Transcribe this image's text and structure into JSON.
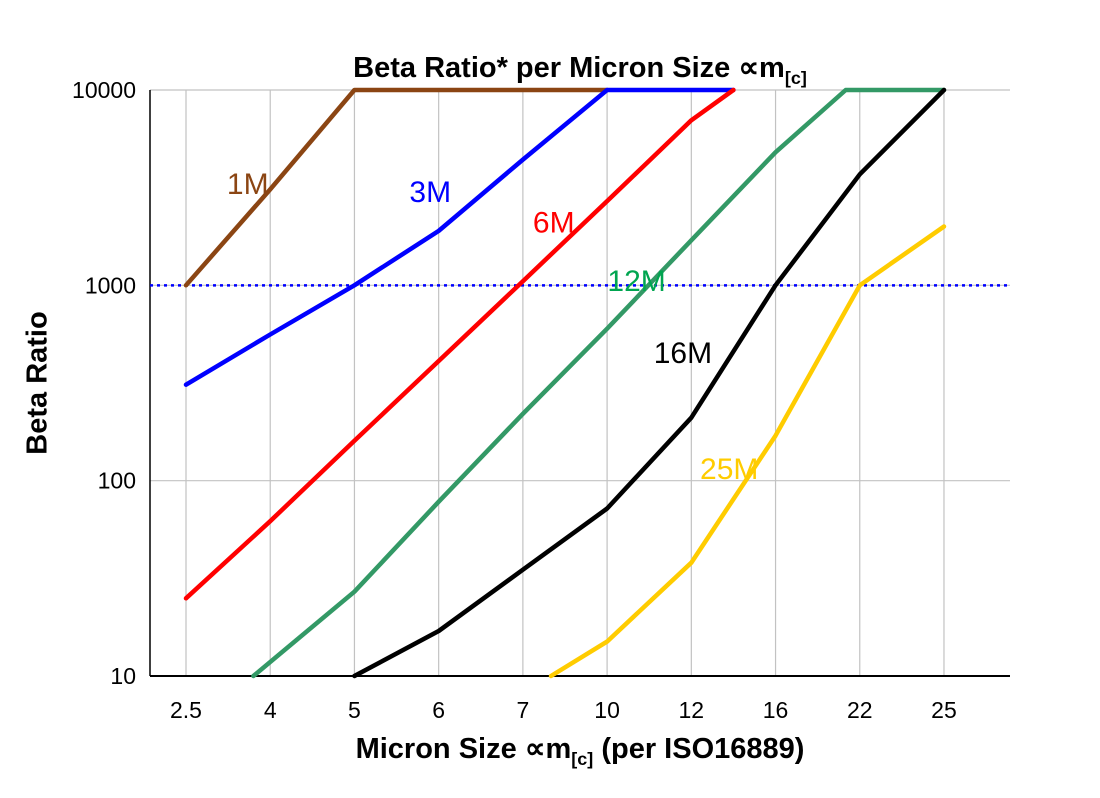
{
  "chart": {
    "title_pre": "Beta Ratio* per Micron Size ",
    "title_sym": "∝m",
    "title_sub": "[c]",
    "ylabel": "Beta Ratio",
    "xlabel_pre": "Micron Size ",
    "xlabel_sym": "∝m",
    "xlabel_sub": "[c]",
    "xlabel_post": " (per ISO16889)"
  },
  "chart_data": {
    "type": "line",
    "title": "Beta Ratio* per Micron Size ∝m[c]",
    "xlabel": "Micron Size ∝m[c] (per ISO16889)",
    "ylabel": "Beta Ratio",
    "x_categories": [
      2.5,
      4,
      5,
      6,
      7,
      10,
      12,
      16,
      22,
      25
    ],
    "x_axis_note": "categories equally spaced",
    "y_scale": "log",
    "y_ticks": [
      10,
      100,
      1000,
      10000
    ],
    "ylim": [
      10,
      10000
    ],
    "grid": true,
    "legend_position": "inline-labels",
    "reference_line": {
      "y": 1000,
      "style": "dotted",
      "color": "#0000ff"
    },
    "series": [
      {
        "name": "1M",
        "color": "#8B4513",
        "points": [
          [
            2.5,
            1000
          ],
          [
            4,
            3100
          ],
          [
            5,
            10000
          ],
          [
            10,
            10000
          ]
        ]
      },
      {
        "name": "3M",
        "color": "#0000FF",
        "points": [
          [
            2.5,
            310
          ],
          [
            4,
            560
          ],
          [
            5,
            1000
          ],
          [
            6,
            1900
          ],
          [
            7,
            4400
          ],
          [
            10,
            10000
          ],
          [
            14,
            10000
          ]
        ]
      },
      {
        "name": "6M",
        "color": "#FF0000",
        "points": [
          [
            2.5,
            25
          ],
          [
            4,
            62
          ],
          [
            5,
            160
          ],
          [
            6,
            410
          ],
          [
            7,
            1050
          ],
          [
            10,
            2700
          ],
          [
            12,
            7000
          ],
          [
            14,
            10000
          ]
        ]
      },
      {
        "name": "12M",
        "color": "#339966",
        "points": [
          [
            3.7,
            10
          ],
          [
            5,
            27
          ],
          [
            6,
            78
          ],
          [
            7,
            220
          ],
          [
            10,
            600
          ],
          [
            12,
            1700
          ],
          [
            16,
            4800
          ],
          [
            21,
            10000
          ],
          [
            25,
            10000
          ]
        ]
      },
      {
        "name": "16M",
        "color": "#000000",
        "points": [
          [
            5,
            10
          ],
          [
            6,
            17
          ],
          [
            7,
            35
          ],
          [
            10,
            72
          ],
          [
            12,
            210
          ],
          [
            16,
            1000
          ],
          [
            22,
            3700
          ],
          [
            25,
            10000
          ]
        ]
      },
      {
        "name": "25M",
        "color": "#FFCC00",
        "points": [
          [
            8,
            10
          ],
          [
            10,
            15
          ],
          [
            12,
            38
          ],
          [
            16,
            170
          ],
          [
            22,
            1000
          ],
          [
            25,
            2000
          ]
        ]
      }
    ],
    "annotations": [
      {
        "text": "1M",
        "color": "#8B4513",
        "x": 3.6,
        "y": 3300
      },
      {
        "text": "3M",
        "color": "#0000FF",
        "x": 5.9,
        "y": 3000
      },
      {
        "text": "6M",
        "color": "#FF0000",
        "x": 8.1,
        "y": 2100
      },
      {
        "text": "12M",
        "color": "#00A550",
        "x": 10.7,
        "y": 1050
      },
      {
        "text": "16M",
        "color": "#000000",
        "x": 11.8,
        "y": 450
      },
      {
        "text": "25M",
        "color": "#FFCC00",
        "x": 13.8,
        "y": 115
      }
    ]
  }
}
